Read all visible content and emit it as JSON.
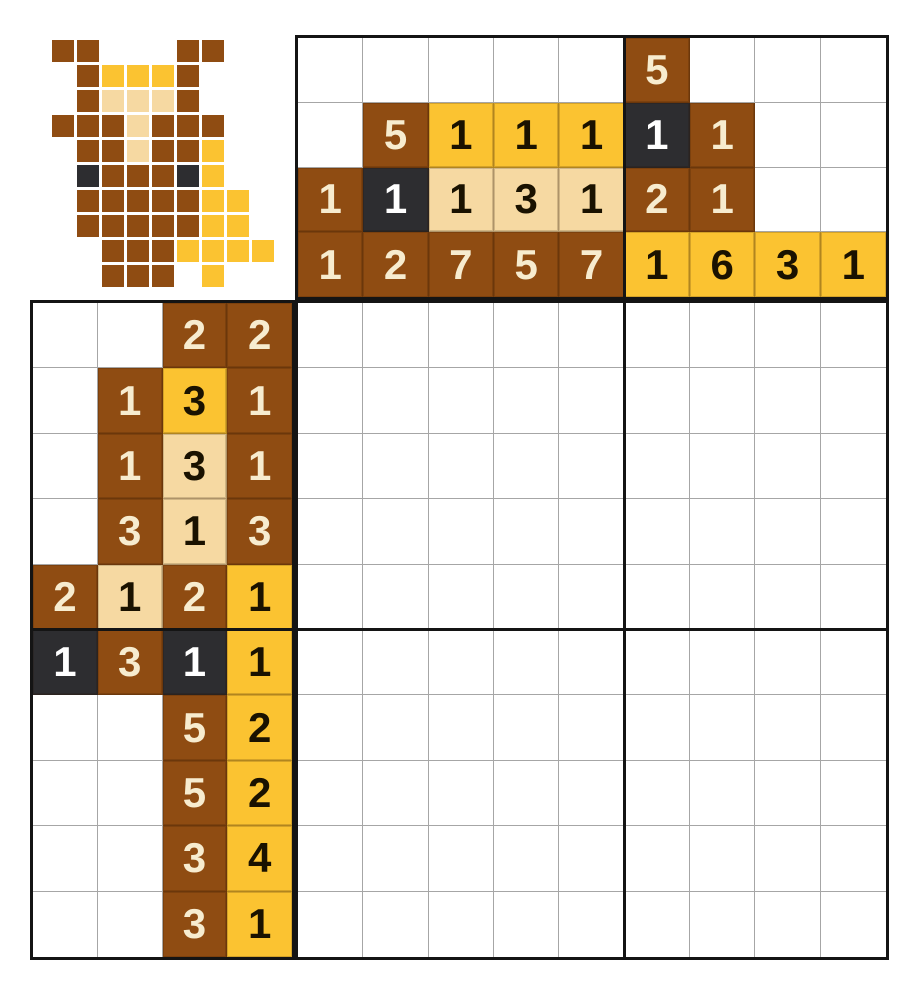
{
  "puzzle": {
    "type": "nonogram",
    "board_rows": 10,
    "board_cols": 9
  },
  "palette": {
    "brown": "#8F4C12",
    "yellow": "#FBC331",
    "cream": "#F6D9A2",
    "dark": "#2D2D30",
    "empty": "#FFFFFF",
    "thin_grid_line": "#A6A6A6",
    "thick_border": "#141414",
    "text_on_brown": "#F7ECCF",
    "text_on_dark": "#FFFFFF",
    "text_on_light": "#1A1200"
  },
  "preview": {
    "rows": 10,
    "cols": 9,
    "legend": {
      "B": "brown",
      "Y": "yellow",
      "C": "cream",
      "D": "dark",
      ".": "empty"
    },
    "grid": [
      "BB...BB..",
      ".BYYYB...",
      ".BCCCB...",
      "BBBCBBB..",
      ".BBCBBY..",
      ".DBBBDY..",
      ".BBBBBYY.",
      ".BBBBBYY.",
      "..BBBYYYY",
      "..BBB.Y.."
    ]
  },
  "column_clues": {
    "rows": [
      [
        null,
        null,
        null,
        null,
        null,
        [
          5,
          "brown"
        ],
        null,
        null,
        null
      ],
      [
        null,
        [
          5,
          "brown"
        ],
        [
          1,
          "yellow"
        ],
        [
          1,
          "yellow"
        ],
        [
          1,
          "yellow"
        ],
        [
          1,
          "dark"
        ],
        [
          1,
          "brown"
        ],
        null,
        null
      ],
      [
        [
          1,
          "brown"
        ],
        [
          1,
          "dark"
        ],
        [
          1,
          "cream"
        ],
        [
          3,
          "cream"
        ],
        [
          1,
          "cream"
        ],
        [
          2,
          "brown"
        ],
        [
          1,
          "brown"
        ],
        null,
        null
      ],
      [
        [
          1,
          "brown"
        ],
        [
          2,
          "brown"
        ],
        [
          7,
          "brown"
        ],
        [
          5,
          "brown"
        ],
        [
          7,
          "brown"
        ],
        [
          1,
          "yellow"
        ],
        [
          6,
          "yellow"
        ],
        [
          3,
          "yellow"
        ],
        [
          1,
          "yellow"
        ]
      ]
    ]
  },
  "row_clues": {
    "rows": [
      [
        null,
        null,
        [
          2,
          "brown"
        ],
        [
          2,
          "brown"
        ]
      ],
      [
        null,
        [
          1,
          "brown"
        ],
        [
          3,
          "yellow"
        ],
        [
          1,
          "brown"
        ]
      ],
      [
        null,
        [
          1,
          "brown"
        ],
        [
          3,
          "cream"
        ],
        [
          1,
          "brown"
        ]
      ],
      [
        null,
        [
          3,
          "brown"
        ],
        [
          1,
          "cream"
        ],
        [
          3,
          "brown"
        ]
      ],
      [
        [
          2,
          "brown"
        ],
        [
          1,
          "cream"
        ],
        [
          2,
          "brown"
        ],
        [
          1,
          "yellow"
        ]
      ],
      [
        [
          1,
          "dark"
        ],
        [
          3,
          "brown"
        ],
        [
          1,
          "dark"
        ],
        [
          1,
          "yellow"
        ]
      ],
      [
        null,
        null,
        [
          5,
          "brown"
        ],
        [
          2,
          "yellow"
        ]
      ],
      [
        null,
        null,
        [
          5,
          "brown"
        ],
        [
          2,
          "yellow"
        ]
      ],
      [
        null,
        null,
        [
          3,
          "brown"
        ],
        [
          4,
          "yellow"
        ]
      ],
      [
        null,
        null,
        [
          3,
          "brown"
        ],
        [
          1,
          "yellow"
        ]
      ]
    ]
  },
  "layout_markers": {
    "thick_divider_after_column": 5,
    "thick_divider_after_row": 5
  }
}
